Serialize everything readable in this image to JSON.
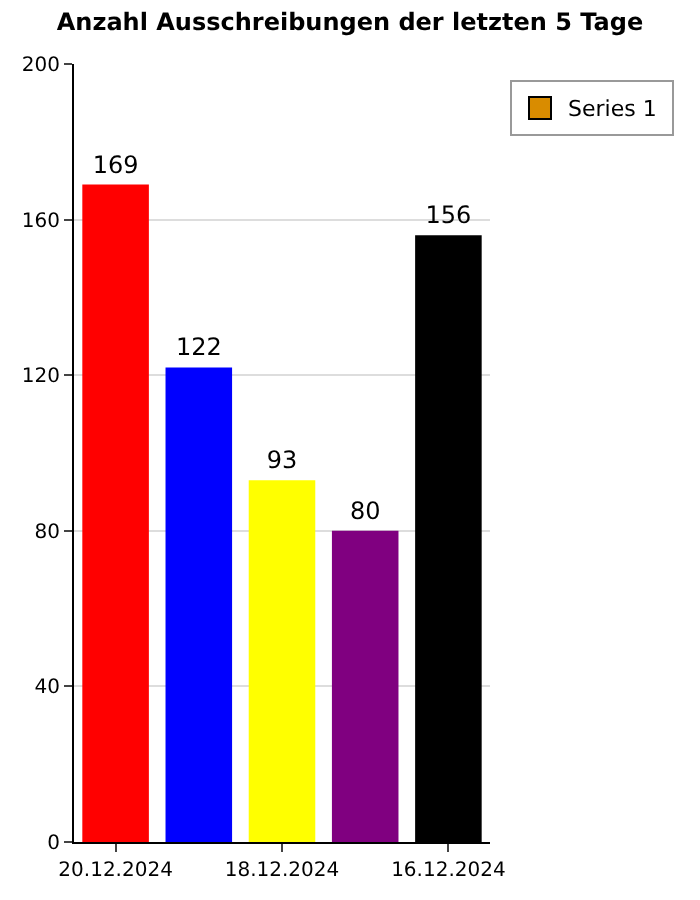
{
  "chart_data": {
    "type": "bar",
    "title": "Anzahl Ausschreibungen der letzten 5 Tage",
    "categories": [
      "20.12.2024",
      null,
      "18.12.2024",
      null,
      "16.12.2024"
    ],
    "series": [
      {
        "name": "Series 1",
        "color": "#d98c00",
        "colors": [
          "#ff0000",
          "#0000ff",
          "#ffff00",
          "#800080",
          "#000000"
        ],
        "values": [
          169,
          122,
          93,
          80,
          156
        ]
      }
    ],
    "ylim": [
      0,
      200
    ],
    "yticks": [
      0,
      40,
      80,
      120,
      160,
      200
    ],
    "grid": "y",
    "legend": "right",
    "data_labels": true
  }
}
